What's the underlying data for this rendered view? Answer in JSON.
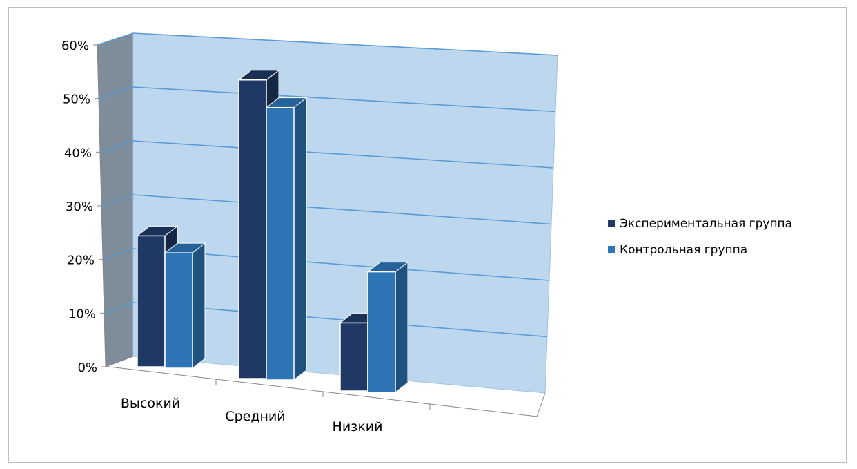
{
  "chart_data": {
    "type": "bar",
    "subtype": "3d-clustered-column",
    "categories": [
      "Высокий",
      "Средний",
      "Низкий"
    ],
    "series": [
      {
        "name": "Экспериментальная группа",
        "values": [
          25,
          57,
          13
        ],
        "color": "#1f3864"
      },
      {
        "name": "Контрольная группа",
        "values": [
          22,
          52,
          23
        ],
        "color": "#2e75b6"
      }
    ],
    "y_ticks": [
      "0%",
      "10%",
      "20%",
      "30%",
      "40%",
      "50%",
      "60%"
    ],
    "ylim": [
      0,
      60
    ],
    "grid": true,
    "legend_position": "right",
    "colors": {
      "back_wall": "#bdd7ee",
      "side_wall": "#7f8c9a",
      "gridline": "#5b9bd5"
    }
  }
}
